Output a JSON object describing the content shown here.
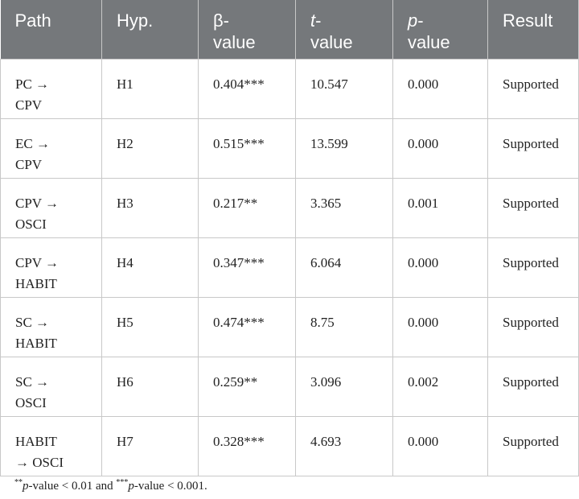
{
  "table": {
    "header": [
      {
        "text": "Path"
      },
      {
        "text": "Hyp."
      },
      {
        "text": "β-value"
      },
      {
        "italic": "t",
        "text": "-value"
      },
      {
        "italic": "p",
        "text": "-value"
      },
      {
        "text": "Result"
      }
    ],
    "rows": [
      {
        "path": [
          "PC →",
          "CPV"
        ],
        "cells": [
          "H1",
          "0.404***",
          "10.547",
          "0.000",
          "Supported"
        ]
      },
      {
        "path": [
          "EC →",
          "CPV"
        ],
        "cells": [
          "H2",
          "0.515***",
          "13.599",
          "0.000",
          "Supported"
        ]
      },
      {
        "path": [
          "CPV →",
          "OSCI"
        ],
        "cells": [
          "H3",
          "0.217**",
          "3.365",
          "0.001",
          "Supported"
        ]
      },
      {
        "path": [
          "CPV →",
          "HABIT"
        ],
        "cells": [
          "H4",
          "0.347***",
          "6.064",
          "0.000",
          "Supported"
        ]
      },
      {
        "path": [
          "SC →",
          "HABIT"
        ],
        "cells": [
          "H5",
          "0.474***",
          "8.75",
          "0.000",
          "Supported"
        ]
      },
      {
        "path": [
          "SC →",
          "OSCI"
        ],
        "cells": [
          "H6",
          "0.259**",
          "3.096",
          "0.002",
          "Supported"
        ]
      },
      {
        "path": [
          "HABIT",
          "→ OSCI"
        ],
        "cells": [
          "H7",
          "0.328***",
          "4.693",
          "0.000",
          "Supported"
        ]
      }
    ],
    "note": [
      {
        "style": "sup",
        "text": "**"
      },
      {
        "style": "i",
        "text": "p"
      },
      {
        "style": "",
        "text": "-value < 0.01 and "
      },
      {
        "style": "sup",
        "text": "***"
      },
      {
        "style": "i",
        "text": "p"
      },
      {
        "style": "",
        "text": "-value < 0.001."
      }
    ]
  }
}
